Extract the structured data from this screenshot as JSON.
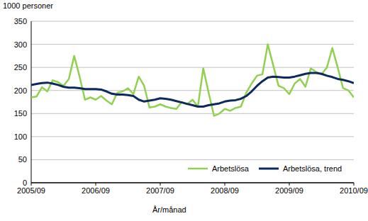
{
  "chart_data": {
    "type": "line",
    "y_label": "1000 personer",
    "x_label": "År/månad",
    "categories": [
      "2005/09",
      null,
      null,
      null,
      null,
      null,
      null,
      null,
      null,
      null,
      null,
      null,
      "2006/09",
      null,
      null,
      null,
      null,
      null,
      null,
      null,
      null,
      null,
      null,
      null,
      "2007/09",
      null,
      null,
      null,
      null,
      null,
      null,
      null,
      null,
      null,
      null,
      null,
      "2008/09",
      null,
      null,
      null,
      null,
      null,
      null,
      null,
      null,
      null,
      null,
      null,
      "2009/09",
      null,
      null,
      null,
      null,
      null,
      null,
      null,
      null,
      null,
      null,
      null,
      "2010/09"
    ],
    "series": [
      {
        "name": "Arbetslösa",
        "color": "#92d050",
        "values": [
          185,
          187,
          207,
          198,
          222,
          218,
          210,
          225,
          275,
          230,
          180,
          185,
          180,
          188,
          178,
          170,
          195,
          198,
          205,
          192,
          230,
          210,
          163,
          165,
          170,
          165,
          162,
          160,
          175,
          170,
          180,
          165,
          248,
          195,
          145,
          150,
          160,
          156,
          162,
          165,
          195,
          215,
          232,
          235,
          300,
          255,
          210,
          205,
          192,
          215,
          225,
          208,
          248,
          240,
          235,
          250,
          292,
          250,
          205,
          200,
          185
        ]
      },
      {
        "name": "Arbetslösa, trend",
        "color": "#0d2a5e",
        "values": [
          212,
          214,
          216,
          217,
          215,
          212,
          208,
          206,
          206,
          205,
          203,
          203,
          203,
          202,
          198,
          193,
          191,
          191,
          190,
          188,
          180,
          176,
          178,
          180,
          183,
          182,
          180,
          177,
          174,
          171,
          168,
          165,
          165,
          168,
          170,
          172,
          176,
          178,
          179,
          182,
          188,
          198,
          210,
          220,
          228,
          230,
          229,
          228,
          228,
          230,
          233,
          236,
          238,
          238,
          236,
          232,
          229,
          225,
          223,
          220,
          216
        ]
      }
    ],
    "ylim": [
      0,
      350
    ],
    "yticks": [
      0,
      50,
      100,
      150,
      200,
      250,
      300,
      350
    ],
    "grid": true,
    "legend": "lower right"
  }
}
